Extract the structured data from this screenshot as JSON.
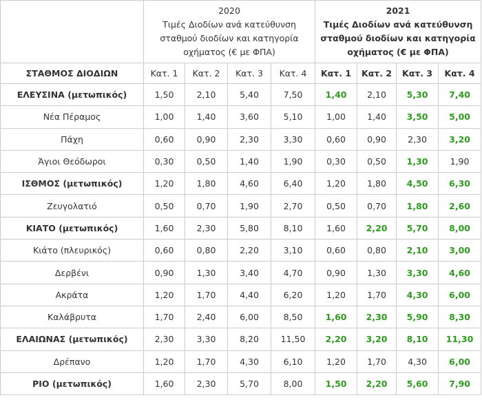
{
  "table": {
    "station_header": "ΣΤΑΘΜΟΣ ΔΙΟΔΙΩΝ",
    "years": [
      {
        "year": "2020",
        "description": "Τιμές Διοδίων ανά κατεύθυνση σταθμού διοδίων και κατηγορία οχήματος (€ με ΦΠΑ)",
        "bold": false
      },
      {
        "year": "2021",
        "description": "Τιμές Διοδίων ανά κατεύθυνση σταθμού διοδίων και κατηγορία οχήματος (€ με ΦΠΑ)",
        "bold": true
      }
    ],
    "categories": [
      "Κατ. 1",
      "Κατ. 2",
      "Κατ. 3",
      "Κατ. 4"
    ],
    "changed_color": "#2e9a1e",
    "rows": [
      {
        "station": "ΕΛΕΥΣΙΝΑ (μετωπικός)",
        "bold": true,
        "prices": [
          [
            "1,50",
            "2,10",
            "5,40",
            "7,50"
          ],
          [
            "1,40",
            "2,10",
            "5,30",
            "7,40"
          ]
        ]
      },
      {
        "station": "Νέα Πέραμος",
        "bold": false,
        "prices": [
          [
            "1,00",
            "1,40",
            "3,60",
            "5,10"
          ],
          [
            "1,00",
            "1,40",
            "3,50",
            "5,00"
          ]
        ]
      },
      {
        "station": "Πάχη",
        "bold": false,
        "prices": [
          [
            "0,60",
            "0,90",
            "2,30",
            "3,30"
          ],
          [
            "0,60",
            "0,90",
            "2,30",
            "3,20"
          ]
        ]
      },
      {
        "station": "Άγιοι Θεόδωροι",
        "bold": false,
        "prices": [
          [
            "0,30",
            "0,50",
            "1,40",
            "1,90"
          ],
          [
            "0,30",
            "0,50",
            "1,30",
            "1,90"
          ]
        ]
      },
      {
        "station": "ΙΣΘΜΟΣ (μετωπικός)",
        "bold": true,
        "prices": [
          [
            "1,20",
            "1,80",
            "4,60",
            "6,40"
          ],
          [
            "1,20",
            "1,80",
            "4,50",
            "6,30"
          ]
        ]
      },
      {
        "station": "Ζευγολατιό",
        "bold": false,
        "prices": [
          [
            "0,50",
            "0,70",
            "1,90",
            "2,70"
          ],
          [
            "0,50",
            "0,70",
            "1,80",
            "2,60"
          ]
        ]
      },
      {
        "station": "ΚΙΑΤΟ (μετωπικός)",
        "bold": true,
        "prices": [
          [
            "1,60",
            "2,30",
            "5,80",
            "8,10"
          ],
          [
            "1,60",
            "2,20",
            "5,70",
            "8,00"
          ]
        ]
      },
      {
        "station": "Κιάτο (πλευρικός)",
        "bold": false,
        "prices": [
          [
            "0,60",
            "0,80",
            "2,20",
            "3,10"
          ],
          [
            "0,60",
            "0,80",
            "2,10",
            "3,00"
          ]
        ]
      },
      {
        "station": "Δερβένι",
        "bold": false,
        "prices": [
          [
            "0,90",
            "1,30",
            "3,40",
            "4,70"
          ],
          [
            "0,90",
            "1,30",
            "3,30",
            "4,60"
          ]
        ]
      },
      {
        "station": "Ακράτα",
        "bold": false,
        "prices": [
          [
            "1,20",
            "1,70",
            "4,40",
            "6,20"
          ],
          [
            "1,20",
            "1,70",
            "4,30",
            "6,00"
          ]
        ]
      },
      {
        "station": "Καλάβρυτα",
        "bold": false,
        "prices": [
          [
            "1,70",
            "2,40",
            "6,00",
            "8,50"
          ],
          [
            "1,60",
            "2,30",
            "5,90",
            "8,30"
          ]
        ]
      },
      {
        "station": "ΕΛΑΙΩΝΑΣ (μετωπικός)",
        "bold": true,
        "prices": [
          [
            "2,30",
            "3,30",
            "8,20",
            "11,50"
          ],
          [
            "2,20",
            "3,20",
            "8,10",
            "11,30"
          ]
        ]
      },
      {
        "station": "Δρέπανο",
        "bold": false,
        "prices": [
          [
            "1,20",
            "1,70",
            "4,30",
            "6,10"
          ],
          [
            "1,20",
            "1,70",
            "4,30",
            "6,00"
          ]
        ]
      },
      {
        "station": "ΡΙΟ (μετωπικός)",
        "bold": true,
        "prices": [
          [
            "1,60",
            "2,30",
            "5,70",
            "8,00"
          ],
          [
            "1,50",
            "2,20",
            "5,60",
            "7,90"
          ]
        ]
      }
    ]
  }
}
